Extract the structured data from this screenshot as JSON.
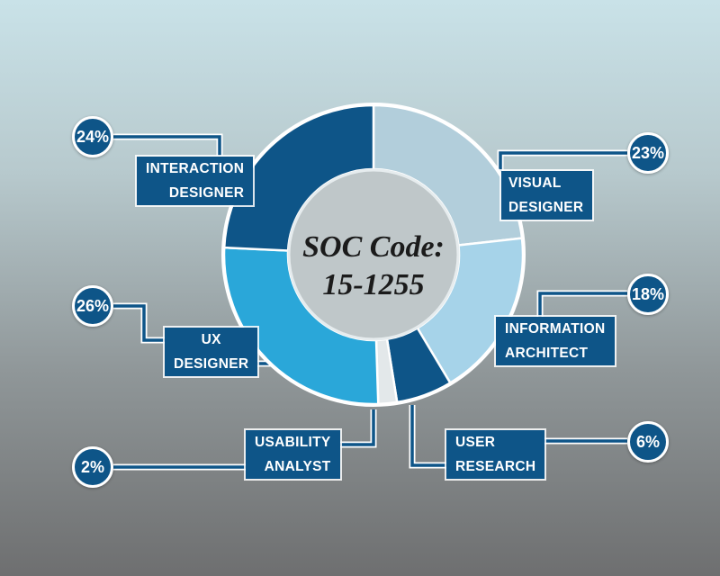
{
  "chart_data": {
    "type": "donut",
    "center_label": [
      "SOC Code:",
      "15-1255"
    ],
    "slices": [
      {
        "name_lines": [
          "VISUAL",
          "DESIGNER"
        ],
        "value": 23,
        "value_label": "23%",
        "color": "#b2cedb"
      },
      {
        "name_lines": [
          "INFORMATION",
          "ARCHITECT"
        ],
        "value": 18,
        "value_label": "18%",
        "color": "#a6d3e9"
      },
      {
        "name_lines": [
          "USER",
          "RESEARCH"
        ],
        "value": 6,
        "value_label": "6%",
        "color": "#0e5588"
      },
      {
        "name_lines": [
          "USABILITY",
          "ANALYST"
        ],
        "value": 2,
        "value_label": "2%",
        "color": "#e3e8ea"
      },
      {
        "name_lines": [
          "UX",
          "DESIGNER"
        ],
        "value": 26,
        "value_label": "26%",
        "color": "#2aa7d9"
      },
      {
        "name_lines": [
          "INTERACTION",
          "DESIGNER"
        ],
        "value": 24,
        "value_label": "24%",
        "color": "#0e5588"
      }
    ]
  },
  "colors": {
    "accent_dark": "#0e5588",
    "ring_gap": "#ffffff",
    "center_fill": "#bfc7c9"
  }
}
